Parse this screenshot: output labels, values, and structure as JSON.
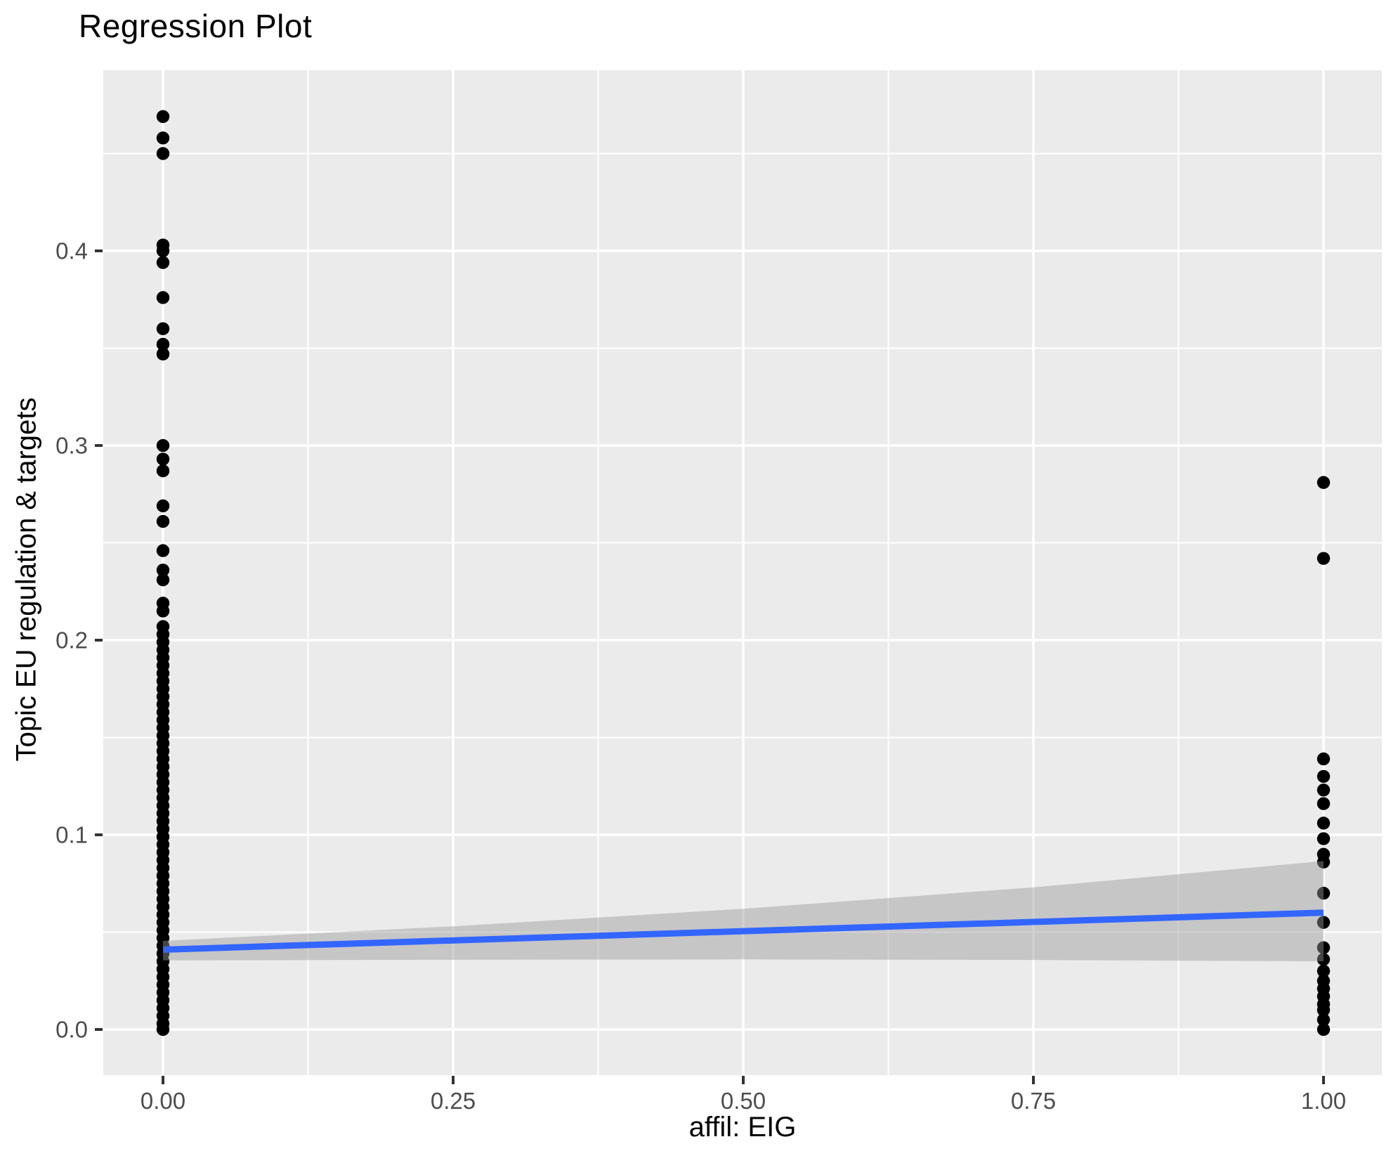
{
  "title": "Regression Plot",
  "chart_data": {
    "type": "scatter",
    "title": "Regression Plot",
    "xlabel": "affil: EIG",
    "ylabel": "Topic EU regulation & targets",
    "legend": "none",
    "grid": "on",
    "xlim": [
      -0.0514,
      1.0503
    ],
    "ylim": [
      -0.0235,
      0.4928
    ],
    "x_ticks": {
      "values": [
        0,
        0.25,
        0.5,
        0.75,
        1.0
      ],
      "labels": [
        "0.00",
        "0.25",
        "0.50",
        "0.75",
        "1.00"
      ]
    },
    "y_ticks": {
      "values": [
        0,
        0.1,
        0.2,
        0.3,
        0.4
      ],
      "labels": [
        "0.0",
        "0.1",
        "0.2",
        "0.3",
        "0.4"
      ]
    },
    "series": [
      {
        "name": "affil EIG = 0",
        "x": 0,
        "values": [
          0.469,
          0.458,
          0.45,
          0.403,
          0.4,
          0.394,
          0.376,
          0.36,
          0.352,
          0.347,
          0.3,
          0.293,
          0.287,
          0.269,
          0.261,
          0.246,
          0.236,
          0.231,
          0.219,
          0.215,
          0.207,
          0.203,
          0.199,
          0.195,
          0.191,
          0.187,
          0.183,
          0.179,
          0.175,
          0.171,
          0.167,
          0.163,
          0.159,
          0.155,
          0.151,
          0.147,
          0.143,
          0.139,
          0.135,
          0.131,
          0.127,
          0.123,
          0.119,
          0.115,
          0.111,
          0.107,
          0.103,
          0.099,
          0.095,
          0.091,
          0.087,
          0.083,
          0.079,
          0.075,
          0.071,
          0.067,
          0.063,
          0.059,
          0.055,
          0.051,
          0.047,
          0.043,
          0.039,
          0.035,
          0.031,
          0.027,
          0.023,
          0.019,
          0.015,
          0.011,
          0.007,
          0.003,
          0.0
        ]
      },
      {
        "name": "affil EIG = 1",
        "x": 1,
        "values": [
          0.281,
          0.242,
          0.139,
          0.13,
          0.123,
          0.116,
          0.106,
          0.098,
          0.09,
          0.086,
          0.07,
          0.055,
          0.042,
          0.036,
          0.03,
          0.025,
          0.021,
          0.017,
          0.013,
          0.01,
          0.005,
          0.0
        ]
      }
    ],
    "regression": {
      "line": {
        "x": [
          0,
          1
        ],
        "y": [
          0.041,
          0.06
        ]
      },
      "ci": {
        "x": [
          0,
          0.25,
          0.5,
          0.75,
          1.0
        ],
        "upper": [
          0.0455,
          0.053,
          0.062,
          0.073,
          0.0865
        ],
        "lower": [
          0.0355,
          0.0358,
          0.036,
          0.0357,
          0.035
        ]
      }
    },
    "colors": {
      "point": "#000000",
      "regression_line": "#3366FF",
      "ci_band": "#999999",
      "ci_band_opacity": 0.45,
      "panel_background": "#EBEBEB",
      "gridline": "#FFFFFF",
      "tick_label": "#4D4D4D",
      "tick_mark": "#333333",
      "title_color": "#000000"
    }
  }
}
